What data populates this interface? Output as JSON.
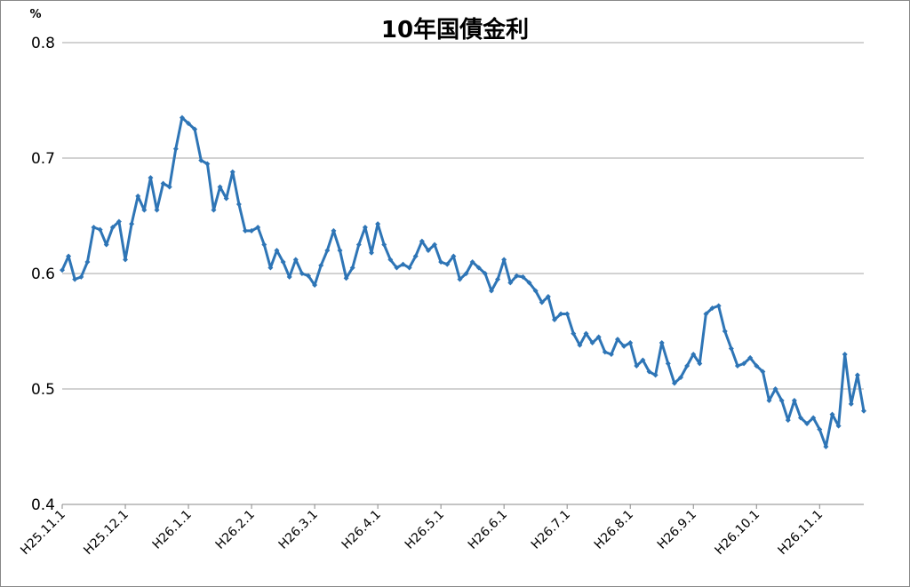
{
  "chart_data": {
    "type": "line",
    "title": "10年国債金利",
    "y_unit": "%",
    "categories": [
      "H25.11.1",
      null,
      null,
      null,
      null,
      null,
      null,
      null,
      null,
      null,
      "H25.12.1",
      null,
      null,
      null,
      null,
      null,
      null,
      null,
      null,
      null,
      "H26.1.1",
      null,
      null,
      null,
      null,
      null,
      null,
      null,
      null,
      null,
      "H26.2.1",
      null,
      null,
      null,
      null,
      null,
      null,
      null,
      null,
      null,
      "H26.3.1",
      null,
      null,
      null,
      null,
      null,
      null,
      null,
      null,
      null,
      "H26.4.1",
      null,
      null,
      null,
      null,
      null,
      null,
      null,
      null,
      null,
      "H26.5.1",
      null,
      null,
      null,
      null,
      null,
      null,
      null,
      null,
      null,
      "H26.6.1",
      null,
      null,
      null,
      null,
      null,
      null,
      null,
      null,
      null,
      "H26.7.1",
      null,
      null,
      null,
      null,
      null,
      null,
      null,
      null,
      null,
      "H26.8.1",
      null,
      null,
      null,
      null,
      null,
      null,
      null,
      null,
      null,
      "H26.9.1",
      null,
      null,
      null,
      null,
      null,
      null,
      null,
      null,
      null,
      "H26.10.1",
      null,
      null,
      null,
      null,
      null,
      null,
      null,
      null,
      null,
      "H26.11.1",
      null,
      null,
      null,
      null,
      null,
      null,
      null
    ],
    "series": [
      {
        "color": "#2e75b6",
        "values": [
          0.603,
          0.615,
          0.595,
          0.597,
          0.61,
          0.64,
          0.638,
          0.625,
          0.64,
          0.645,
          0.612,
          0.643,
          0.667,
          0.655,
          0.683,
          0.655,
          0.678,
          0.675,
          0.708,
          0.735,
          0.73,
          0.725,
          0.698,
          0.695,
          0.655,
          0.675,
          0.665,
          0.688,
          0.66,
          0.637,
          0.637,
          0.64,
          0.625,
          0.605,
          0.62,
          0.61,
          0.597,
          0.612,
          0.6,
          0.598,
          0.59,
          0.607,
          0.62,
          0.637,
          0.62,
          0.596,
          0.605,
          0.625,
          0.64,
          0.618,
          0.643,
          0.625,
          0.612,
          0.605,
          0.608,
          0.605,
          0.615,
          0.628,
          0.62,
          0.625,
          0.61,
          0.608,
          0.615,
          0.595,
          0.6,
          0.61,
          0.605,
          0.6,
          0.585,
          0.595,
          0.612,
          0.592,
          0.598,
          0.597,
          0.592,
          0.585,
          0.575,
          0.58,
          0.56,
          0.565,
          0.565,
          0.548,
          0.538,
          0.548,
          0.54,
          0.545,
          0.532,
          0.53,
          0.543,
          0.537,
          0.54,
          0.52,
          0.525,
          0.515,
          0.512,
          0.54,
          0.522,
          0.505,
          0.51,
          0.52,
          0.53,
          0.522,
          0.565,
          0.57,
          0.572,
          0.55,
          0.535,
          0.52,
          0.522,
          0.527,
          0.52,
          0.515,
          0.49,
          0.5,
          0.49,
          0.473,
          0.49,
          0.475,
          0.47,
          0.475,
          0.465,
          0.45,
          0.478,
          0.468,
          0.53,
          0.487,
          0.512,
          0.481
        ]
      }
    ],
    "ylim": [
      0.4,
      0.8
    ],
    "yticks": [
      0.4,
      0.5,
      0.6,
      0.7,
      0.8
    ],
    "grid": true
  }
}
